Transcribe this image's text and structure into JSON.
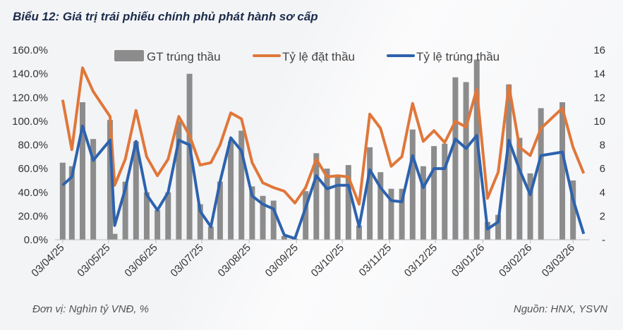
{
  "title": "Biểu 12: Giá trị trái phiếu chính phủ phát hành sơ cấp",
  "unit_note": "Đơn vị: Nghìn tỷ VNĐ, %",
  "source_note": "Nguồn: HNX, YSVN",
  "chart_data": {
    "type": "bar+line",
    "title": "Biểu 12: Giá trị trái phiếu chính phủ phát hành sơ cấp",
    "colors": {
      "GT trúng thầu": "#8c8c8c",
      "Tỷ lệ đặt thầu": "#e0773a",
      "Tỷ lệ trúng thầu": "#2d62ad"
    },
    "legend_position": "top",
    "grid": false,
    "y_left": {
      "range": [
        0,
        160
      ],
      "ticks": [
        "0.0%",
        "20.0%",
        "40.0%",
        "60.0%",
        "80.0%",
        "100.0%",
        "120.0%",
        "140.0%",
        "160.0%"
      ]
    },
    "y_right": {
      "range": [
        0,
        16
      ],
      "ticks": [
        "-",
        "2",
        "4",
        "6",
        "8",
        "10",
        "12",
        "14",
        "16"
      ]
    },
    "x_ticks": [
      [
        "2025-04-03",
        "03/04/25"
      ],
      [
        "2025-05-03",
        "03/05/25"
      ],
      [
        "2025-06-03",
        "03/06/25"
      ],
      [
        "2025-07-03",
        "03/07/25"
      ],
      [
        "2025-08-03",
        "03/08/25"
      ],
      [
        "2025-09-03",
        "03/09/25"
      ],
      [
        "2025-10-03",
        "03/10/25"
      ],
      [
        "2025-11-03",
        "03/11/25"
      ],
      [
        "2025-12-03",
        "03/12/25"
      ],
      [
        "2026-01-03",
        "03/01/26"
      ],
      [
        "2026-02-03",
        "03/02/26"
      ],
      [
        "2026-03-03",
        "03/03/26"
      ]
    ],
    "series": [
      {
        "name": "GT trúng thầu",
        "type": "bar",
        "axis": "right"
      },
      {
        "name": "Tỷ lệ đặt thầu",
        "type": "line",
        "axis": "left"
      },
      {
        "name": "Tỷ lệ trúng thầu",
        "type": "line",
        "axis": "left"
      }
    ],
    "columns": [
      "date",
      "GT trúng thầu",
      "Tỷ lệ đặt thầu",
      "Tỷ lệ trúng thầu"
    ],
    "points": [
      [
        "2025-04-03",
        6.5,
        118,
        46
      ],
      [
        "2025-04-09",
        6.2,
        76,
        53
      ],
      [
        "2025-04-16",
        11.6,
        145,
        96
      ],
      [
        "2025-04-23",
        8.5,
        125,
        67
      ],
      [
        "2025-05-04",
        10.1,
        104,
        84
      ],
      [
        "2025-05-07",
        0.5,
        46,
        12
      ],
      [
        "2025-05-14",
        4.9,
        68,
        43
      ],
      [
        "2025-05-21",
        8.3,
        109,
        83
      ],
      [
        "2025-05-28",
        4.0,
        70,
        38
      ],
      [
        "2025-06-04",
        2.5,
        54,
        25
      ],
      [
        "2025-06-11",
        4.0,
        68,
        40
      ],
      [
        "2025-06-18",
        10.0,
        104,
        84
      ],
      [
        "2025-06-25",
        14.0,
        88,
        80
      ],
      [
        "2025-07-02",
        3.0,
        63,
        24
      ],
      [
        "2025-07-09",
        1.1,
        65,
        11
      ],
      [
        "2025-07-15",
        4.9,
        80,
        49
      ],
      [
        "2025-07-22",
        8.3,
        107,
        86
      ],
      [
        "2025-07-29",
        9.2,
        102,
        75
      ],
      [
        "2025-08-05",
        4.5,
        65,
        37
      ],
      [
        "2025-08-12",
        3.7,
        48,
        30
      ],
      [
        "2025-08-19",
        3.3,
        44,
        26
      ],
      [
        "2025-08-26",
        0.3,
        41,
        4
      ],
      [
        "2025-09-02",
        0.1,
        31,
        1
      ],
      [
        "2025-09-09",
        4.1,
        44,
        27
      ],
      [
        "2025-09-16",
        7.3,
        68,
        54
      ],
      [
        "2025-09-23",
        6.0,
        53,
        43
      ],
      [
        "2025-09-30",
        5.4,
        54,
        46
      ],
      [
        "2025-10-07",
        6.3,
        53,
        46
      ],
      [
        "2025-10-14",
        1.2,
        30,
        11
      ],
      [
        "2025-10-21",
        7.8,
        106,
        59
      ],
      [
        "2025-10-28",
        5.7,
        94,
        44
      ],
      [
        "2025-11-04",
        4.3,
        62,
        33
      ],
      [
        "2025-11-11",
        4.3,
        70,
        32
      ],
      [
        "2025-11-18",
        9.3,
        115,
        71
      ],
      [
        "2025-11-25",
        6.2,
        83,
        44
      ],
      [
        "2025-12-02",
        7.9,
        92,
        60
      ],
      [
        "2025-12-09",
        8.1,
        82,
        60
      ],
      [
        "2025-12-16",
        13.7,
        100,
        85
      ],
      [
        "2025-12-23",
        13.3,
        95,
        77
      ],
      [
        "2025-12-30",
        15.2,
        127,
        88
      ],
      [
        "2026-01-06",
        1.5,
        35,
        9
      ],
      [
        "2026-01-13",
        2.1,
        57,
        15
      ],
      [
        "2026-01-20",
        13.1,
        130,
        84
      ],
      [
        "2026-01-27",
        8.6,
        78,
        59
      ],
      [
        "2026-02-03",
        5.6,
        71,
        38
      ],
      [
        "2026-02-10",
        11.1,
        94,
        71
      ],
      [
        "2026-02-24",
        11.6,
        111,
        74
      ],
      [
        "2026-03-03",
        5.0,
        78,
        34
      ],
      [
        "2026-03-10",
        0,
        56,
        5
      ]
    ]
  }
}
